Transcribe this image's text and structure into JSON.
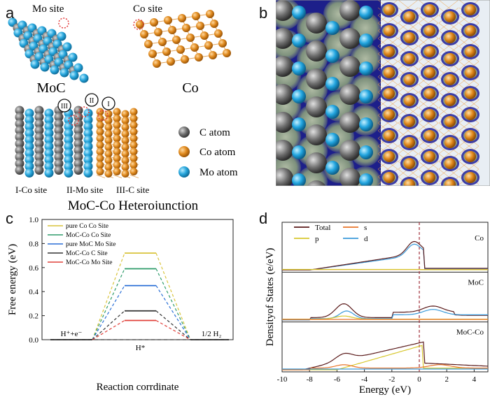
{
  "panels": {
    "a": {
      "letter": "a",
      "mo_site_label": "Mo site",
      "co_site_label": "Co site",
      "moc_label": "MoC",
      "co_label": "Co",
      "hetero_label": "MoC-Co Heterojunction",
      "site_markers": [
        "III",
        "II",
        "I"
      ],
      "site_captions": [
        "I-Co site",
        "II-Mo site",
        "III-C site"
      ],
      "legend": [
        {
          "label": "C atom",
          "color": "#6e6e6e"
        },
        {
          "label": "Co atom",
          "color": "#e08a1e"
        },
        {
          "label": "Mo atom",
          "color": "#2ea8dc"
        }
      ]
    },
    "b": {
      "letter": "b"
    },
    "c": {
      "letter": "c"
    },
    "d": {
      "letter": "d"
    }
  },
  "chart_data": [
    {
      "type": "line",
      "panel": "c",
      "ylabel": "Free energy (eV)",
      "xlabel": "Reaction corrdinate",
      "ylim": [
        0.0,
        1.0
      ],
      "yticks": [
        "0.0",
        "0.2",
        "0.4",
        "0.6",
        "0.8",
        "1.0"
      ],
      "state_labels": {
        "initial": "H⁺+e⁻",
        "intermediate": "H*",
        "final": "1/2 H₂"
      },
      "series": [
        {
          "name": "pure Co Co Site",
          "color": "#d9c43c",
          "value": 0.72
        },
        {
          "name": "MoC-Co Co Site",
          "color": "#2e9b6a",
          "value": 0.59
        },
        {
          "name": "pure MoC Mo Site",
          "color": "#2a6fd6",
          "value": 0.45
        },
        {
          "name": "MoC-Co C Site",
          "color": "#333333",
          "value": 0.24
        },
        {
          "name": "MoC-Co Mo Site",
          "color": "#e0403a",
          "value": 0.16
        }
      ]
    },
    {
      "type": "line",
      "panel": "d",
      "ylabel": "Densityof States (e/eV)",
      "xlabel": "Energy (eV)",
      "xlim": [
        -10,
        5
      ],
      "xticks": [
        "-10",
        "-8",
        "-6",
        "-4",
        "-2",
        "0",
        "2",
        "4"
      ],
      "legend": [
        {
          "name": "Total",
          "color": "#5a1a1a"
        },
        {
          "name": "s",
          "color": "#e8742a"
        },
        {
          "name": "p",
          "color": "#d7c72d"
        },
        {
          "name": "d",
          "color": "#3a9ad9"
        }
      ],
      "subplots": [
        {
          "label": "Co"
        },
        {
          "label": "MoC"
        },
        {
          "label": "MoC-Co"
        }
      ]
    }
  ]
}
